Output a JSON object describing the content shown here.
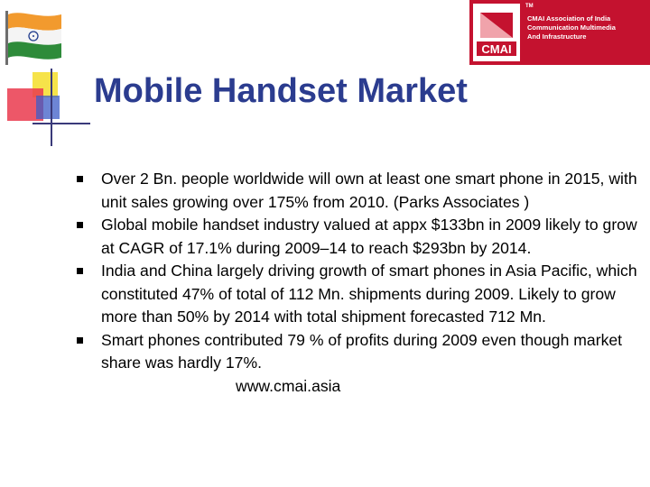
{
  "slide": {
    "title": "Mobile Handset Market",
    "bullets": [
      {
        "text": "Over 2 Bn. people worldwide will own at least one smart phone in 2015, with unit sales growing over 175% from 2010. (Parks Associates )"
      },
      {
        "text": "Global mobile handset industry  valued at appx $133bn in 2009 likely to grow at CAGR of 17.1% during 2009–14 to reach $293bn by 2014."
      },
      {
        "text": "India and China largely driving growth of smart phones in Asia Pacific, which constituted 47% of total of 112 Mn. shipments during 2009. Likely to grow more than 50% by 2014 with total shipment forecasted 712 Mn."
      },
      {
        "text": "Smart phones contributed 79 % of profits during 2009 even though market share was hardly 17%."
      }
    ],
    "url": "www.cmai.asia"
  },
  "logo": {
    "tm": "TM",
    "mark": "CMAI",
    "line1": "CMAI Association of India",
    "line2": "Communication Multimedia",
    "line3": "And Infrastructure"
  },
  "colors": {
    "title": "#2b3c8f",
    "logo_red": "#c4122f",
    "flag_saffron": "#f29a2e",
    "flag_green": "#2e8b3a",
    "chakra": "#1f3b8c"
  },
  "icons": {
    "flag": "india-flag-icon",
    "bullet": "square-bullet-icon"
  }
}
